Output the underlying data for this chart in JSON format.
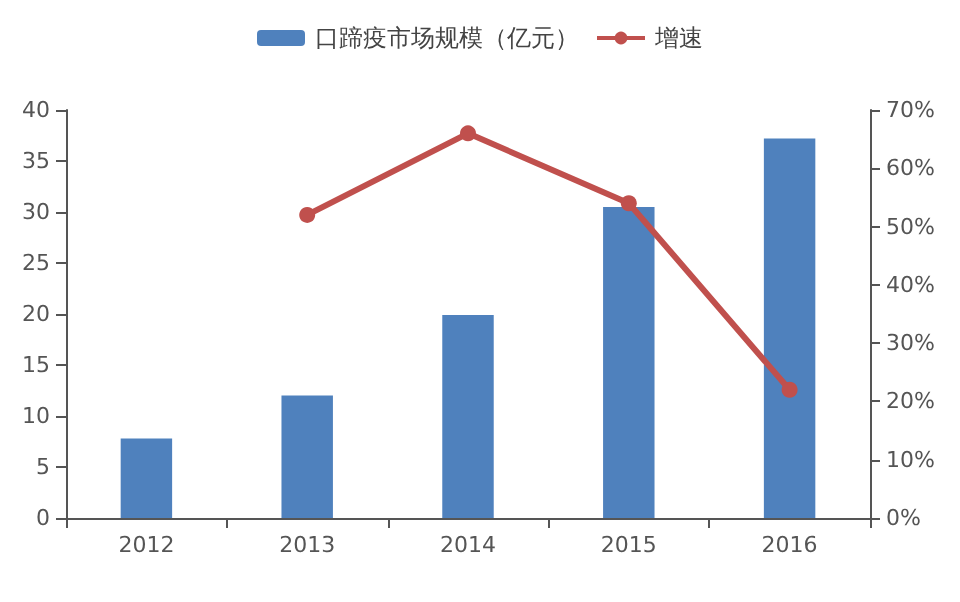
{
  "chart_data": {
    "type": "bar",
    "categories": [
      "2012",
      "2013",
      "2014",
      "2015",
      "2016"
    ],
    "series": [
      {
        "name": "口蹄疫市场规模（亿元）",
        "color": "#4f81bd",
        "values": [
          7.8,
          12,
          19.9,
          30.5,
          37.2
        ]
      },
      {
        "name": "增速",
        "type": "line",
        "axis": "y2",
        "color": "#c0504d",
        "marker": "circle",
        "values": [
          null,
          52,
          66,
          54,
          22
        ]
      }
    ],
    "ylim": [
      0,
      40
    ],
    "yticks": [
      0,
      5,
      10,
      15,
      20,
      25,
      30,
      35,
      40
    ],
    "y2lim": [
      0,
      70
    ],
    "y2ticks": [
      {
        "value": 0,
        "label": "0%"
      },
      {
        "value": 10,
        "label": "10%"
      },
      {
        "value": 20,
        "label": "20%"
      },
      {
        "value": 30,
        "label": "30%"
      },
      {
        "value": 40,
        "label": "40%"
      },
      {
        "value": 50,
        "label": "50%"
      },
      {
        "value": 60,
        "label": "60%"
      },
      {
        "value": 70,
        "label": "70%"
      }
    ],
    "legend": "top",
    "grid": false
  }
}
